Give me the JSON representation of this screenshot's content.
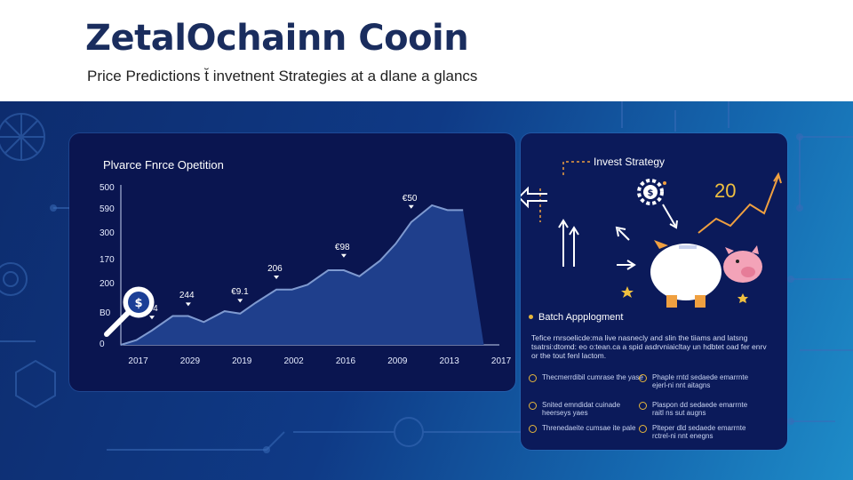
{
  "header": {
    "title": "ZetalOchainn Cooin",
    "subtitle": "Price Predictions t̆ invetnent Strategies at a dlane a glancs"
  },
  "chart_panel": {
    "title": "Plvarce Fnrce Opetition",
    "y_ticks": [
      "500",
      "590",
      "300",
      "170",
      "200",
      "B0",
      "0"
    ],
    "x_ticks": [
      "2017",
      "2029",
      "2019",
      "2002",
      "2016",
      "2009",
      "2013",
      "2017"
    ],
    "data_labels": [
      "204",
      "244",
      "€9.1",
      "206",
      "€98",
      "€50"
    ],
    "colors": {
      "line": "#7f9ad0",
      "area": "#1f3f8c",
      "panel": "#0a1550"
    }
  },
  "chart_data": {
    "type": "area",
    "categories": [
      "2017",
      "2029",
      "2019",
      "2002",
      "2016",
      "2009",
      "2013",
      "2017"
    ],
    "x": [
      0,
      0.3,
      0.6,
      1,
      1.3,
      1.6,
      2,
      2.3,
      2.6,
      3,
      3.3,
      3.6,
      4,
      4.3,
      4.6,
      5,
      5.3,
      5.6,
      6,
      6.3,
      6.6,
      7,
      7.3
    ],
    "values": [
      0,
      20,
      60,
      120,
      120,
      95,
      140,
      130,
      175,
      230,
      230,
      250,
      310,
      310,
      285,
      350,
      420,
      510,
      580,
      560,
      560,
      0,
      0
    ],
    "ylim": [
      0,
      650
    ],
    "y_ticks": [
      "500",
      "590",
      "300",
      "170",
      "200",
      "B0",
      "0"
    ],
    "annotations": [
      "204",
      "244",
      "€9.1",
      "206",
      "€98",
      "€50"
    ],
    "title": "Plvarce Fnrce Opetition"
  },
  "strategy_panel": {
    "title": "Invest Strategy",
    "growth_value": "20",
    "section_title": "Batch Appplogment",
    "paragraph": "Tefice rnrsoelicde:ma live nasnecly and slin the tiiams and latsng tsatrsi:dtomd: eo o:tean.ca a spid asdrvniaicltay un hdbtet oad fer enrv or the tout fenl lactom.",
    "items_left": [
      "Thecmerrdibil cumrase the yase",
      "Snited emndidat cuinade heerseys yaes",
      "Threnedaeite cumsae ite pale"
    ],
    "items_right": [
      "Phaple rntd sedaede emarrnte ejerl-ni nnt aitagns",
      "Plaspon dd sedaede emarrnte raitl ns sut augns",
      "Plteper dld sedaede emarrnte rctrel-ni nnt enegns"
    ]
  },
  "icons": {
    "search": "magnifier-dollar-icon",
    "piggy": "piggy-bank-icon",
    "gear": "gear-dollar-icon"
  }
}
